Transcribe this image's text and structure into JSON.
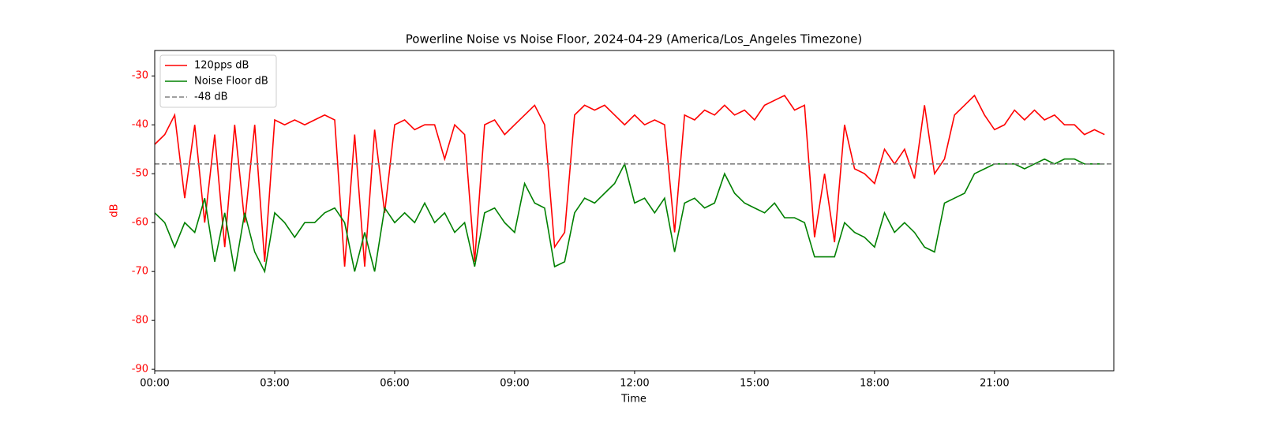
{
  "chart_data": {
    "type": "line",
    "title": "Powerline Noise vs Noise Floor, 2024-04-29 (America/Los_Angeles Timezone)",
    "x_label": "Time",
    "y_label": "dB",
    "x": [
      "00:00",
      "00:15",
      "00:30",
      "00:45",
      "01:00",
      "01:15",
      "01:30",
      "01:45",
      "02:00",
      "02:15",
      "02:30",
      "02:45",
      "03:00",
      "03:15",
      "03:30",
      "03:45",
      "04:00",
      "04:15",
      "04:30",
      "04:45",
      "05:00",
      "05:15",
      "05:30",
      "05:45",
      "06:00",
      "06:15",
      "06:30",
      "06:45",
      "07:00",
      "07:15",
      "07:30",
      "07:45",
      "08:00",
      "08:15",
      "08:30",
      "08:45",
      "09:00",
      "09:15",
      "09:30",
      "09:45",
      "10:00",
      "10:15",
      "10:30",
      "10:45",
      "11:00",
      "11:15",
      "11:30",
      "11:45",
      "12:00",
      "12:15",
      "12:30",
      "12:45",
      "13:00",
      "13:15",
      "13:30",
      "13:45",
      "14:00",
      "14:15",
      "14:30",
      "14:45",
      "15:00",
      "15:15",
      "15:30",
      "15:45",
      "16:00",
      "16:15",
      "16:30",
      "16:45",
      "17:00",
      "17:15",
      "17:30",
      "17:45",
      "18:00",
      "18:15",
      "18:30",
      "18:45",
      "19:00",
      "19:15",
      "19:30",
      "19:45",
      "20:00",
      "20:15",
      "20:30",
      "20:45",
      "21:00",
      "21:15",
      "21:30",
      "21:45",
      "22:00",
      "22:15",
      "22:30",
      "22:45",
      "23:00",
      "23:15",
      "23:30",
      "23:45"
    ],
    "series": [
      {
        "name": "120pps dB",
        "color": "#ff0000",
        "values": [
          -44,
          -42,
          -38,
          -55,
          -40,
          -60,
          -42,
          -65,
          -40,
          -60,
          -40,
          -68,
          -39,
          -40,
          -39,
          -40,
          -39,
          -38,
          -39,
          -69,
          -42,
          -69,
          -41,
          -58,
          -40,
          -39,
          -41,
          -40,
          -40,
          -47,
          -40,
          -42,
          -68,
          -40,
          -39,
          -42,
          -40,
          -38,
          -36,
          -40,
          -65,
          -62,
          -38,
          -36,
          -37,
          -36,
          -38,
          -40,
          -38,
          -40,
          -39,
          -40,
          -62,
          -38,
          -39,
          -37,
          -38,
          -36,
          -38,
          -37,
          -39,
          -36,
          -35,
          -34,
          -37,
          -36,
          -63,
          -50,
          -64,
          -40,
          -49,
          -50,
          -52,
          -45,
          -48,
          -45,
          -51,
          -36,
          -50,
          -47,
          -38,
          -36,
          -34,
          -38,
          -41,
          -40,
          -37,
          -39,
          -37,
          -39,
          -38,
          -40,
          -40,
          -42,
          -41,
          -42
        ]
      },
      {
        "name": "Noise Floor dB",
        "color": "#008000",
        "values": [
          -58,
          -60,
          -65,
          -60,
          -62,
          -55,
          -68,
          -58,
          -70,
          -58,
          -66,
          -70,
          -58,
          -60,
          -63,
          -60,
          -60,
          -58,
          -57,
          -60,
          -70,
          -62,
          -70,
          -57,
          -60,
          -58,
          -60,
          -56,
          -60,
          -58,
          -62,
          -60,
          -69,
          -58,
          -57,
          -60,
          -62,
          -52,
          -56,
          -57,
          -69,
          -68,
          -58,
          -55,
          -56,
          -54,
          -52,
          -48,
          -56,
          -55,
          -58,
          -55,
          -66,
          -56,
          -55,
          -57,
          -56,
          -50,
          -54,
          -56,
          -57,
          -58,
          -56,
          -59,
          -59,
          -60,
          -67,
          -67,
          -67,
          -60,
          -62,
          -63,
          -65,
          -58,
          -62,
          -60,
          -62,
          -65,
          -66,
          -56,
          -55,
          -54,
          -50,
          -49,
          -48,
          -48,
          -48,
          -49,
          -48,
          -47,
          -48,
          -47,
          -47,
          -48,
          -48,
          -48
        ]
      }
    ],
    "hline": {
      "name": "-48 dB",
      "value": -48,
      "color": "#808080"
    },
    "xlim": [
      "00:00",
      "23:59"
    ],
    "xticks": [
      "00:00",
      "03:00",
      "06:00",
      "09:00",
      "12:00",
      "15:00",
      "18:00",
      "21:00"
    ],
    "ylim": [
      -90.3,
      -24.8
    ],
    "yticks": [
      -90,
      -80,
      -70,
      -60,
      -50,
      -40,
      -30
    ],
    "axis_color": "#ff0000",
    "legend": "upper left"
  }
}
